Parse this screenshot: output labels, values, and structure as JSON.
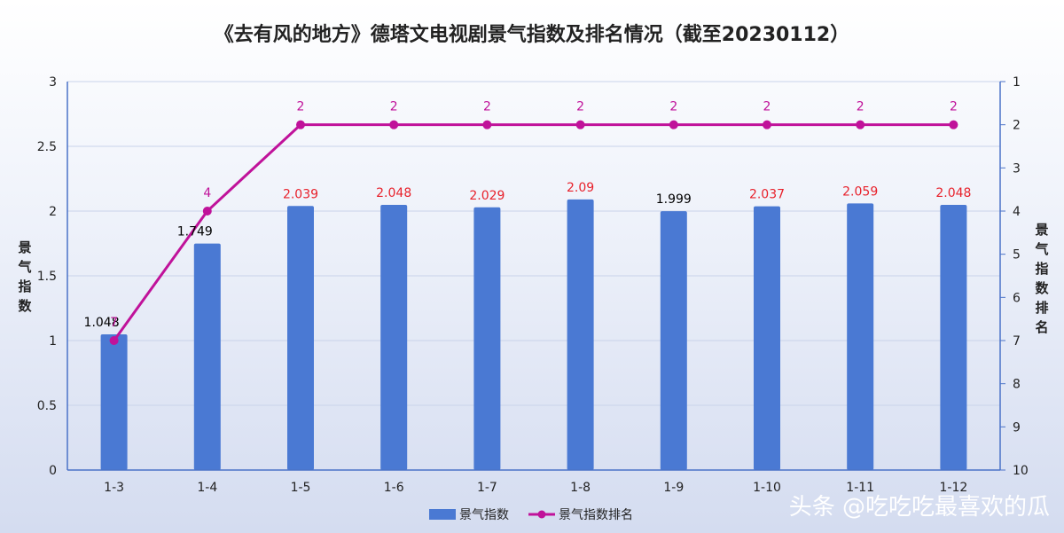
{
  "chart_data": {
    "type": "bar+line",
    "title": "《去有风的地方》德塔文电视剧景气指数及排名情况（截至20230112）",
    "categories": [
      "1-3",
      "1-4",
      "1-5",
      "1-6",
      "1-7",
      "1-8",
      "1-9",
      "1-10",
      "1-11",
      "1-12"
    ],
    "series": [
      {
        "name": "景气指数",
        "type": "bar",
        "axis": "left",
        "values": [
          1.048,
          1.749,
          2.039,
          2.048,
          2.029,
          2.09,
          1.999,
          2.037,
          2.059,
          2.048
        ],
        "labels": [
          "1.048",
          "1.749",
          "2.039",
          "2.048",
          "2.029",
          "2.09",
          "1.999",
          "2.037",
          "2.059",
          "2.048"
        ],
        "label_colors": [
          "#000000",
          "#000000",
          "#e8212b",
          "#e8212b",
          "#e8212b",
          "#e8212b",
          "#000000",
          "#e8212b",
          "#e8212b",
          "#e8212b"
        ],
        "color": "#4a79d3"
      },
      {
        "name": "景气指数排名",
        "type": "line",
        "axis": "right",
        "values": [
          7,
          4,
          2,
          2,
          2,
          2,
          2,
          2,
          2,
          2
        ],
        "labels": [
          "7",
          "4",
          "2",
          "2",
          "2",
          "2",
          "2",
          "2",
          "2",
          "2"
        ],
        "color": "#c0129a"
      }
    ],
    "y_left": {
      "label": "景气指数",
      "range": [
        0,
        3
      ],
      "ticks": [
        "0",
        "0.5",
        "1",
        "1.5",
        "2",
        "2.5",
        "3"
      ]
    },
    "y_right": {
      "label": "景气指数排名",
      "range": [
        1,
        10
      ],
      "reversed": true,
      "ticks": [
        "1",
        "2",
        "3",
        "4",
        "5",
        "6",
        "7",
        "8",
        "9",
        "10"
      ]
    },
    "grid": true,
    "legend_position": "bottom",
    "colors": {
      "title": "#222222",
      "axis": "#4a72c8",
      "grid": "#c9d3ea"
    }
  },
  "watermark": "头条 @吃吃吃最喜欢的瓜"
}
